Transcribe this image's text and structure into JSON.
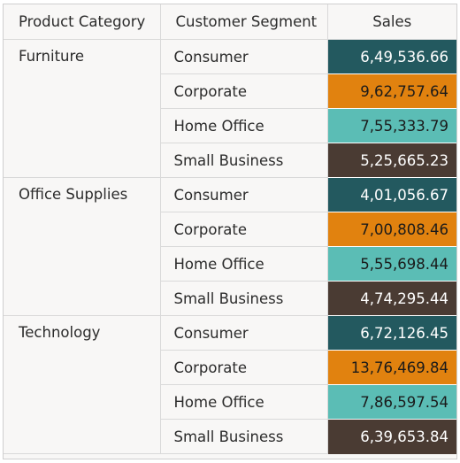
{
  "chart_data": {
    "type": "table",
    "columns": [
      "Product Category",
      "Customer Segment",
      "Sales"
    ],
    "groups": [
      {
        "category": "Furniture",
        "rows": [
          {
            "segment": "Consumer",
            "sales": "6,49,536.66",
            "value": 649536.66
          },
          {
            "segment": "Corporate",
            "sales": "9,62,757.64",
            "value": 962757.64
          },
          {
            "segment": "Home Office",
            "sales": "7,55,333.79",
            "value": 755333.79
          },
          {
            "segment": "Small Business",
            "sales": "5,25,665.23",
            "value": 525665.23
          }
        ]
      },
      {
        "category": "Office Supplies",
        "rows": [
          {
            "segment": "Consumer",
            "sales": "4,01,056.67",
            "value": 401056.67
          },
          {
            "segment": "Corporate",
            "sales": "7,00,808.46",
            "value": 700808.46
          },
          {
            "segment": "Home Office",
            "sales": "5,55,698.44",
            "value": 555698.44
          },
          {
            "segment": "Small Business",
            "sales": "4,74,295.44",
            "value": 474295.44
          }
        ]
      },
      {
        "category": "Technology",
        "rows": [
          {
            "segment": "Consumer",
            "sales": "6,72,126.45",
            "value": 672126.45
          },
          {
            "segment": "Corporate",
            "sales": "13,76,469.84",
            "value": 1376469.84
          },
          {
            "segment": "Home Office",
            "sales": "7,86,597.54",
            "value": 786597.54
          },
          {
            "segment": "Small Business",
            "sales": "6,39,653.84",
            "value": 639653.84
          }
        ]
      }
    ],
    "segment_colors": {
      "Consumer": {
        "bg": "#23595f",
        "fg": "#ffffff"
      },
      "Corporate": {
        "bg": "#e1820f",
        "fg": "#1a1a1a"
      },
      "Home Office": {
        "bg": "#5bbdb5",
        "fg": "#1a1a1a"
      },
      "Small Business": {
        "bg": "#4a3b33",
        "fg": "#ffffff"
      }
    }
  }
}
